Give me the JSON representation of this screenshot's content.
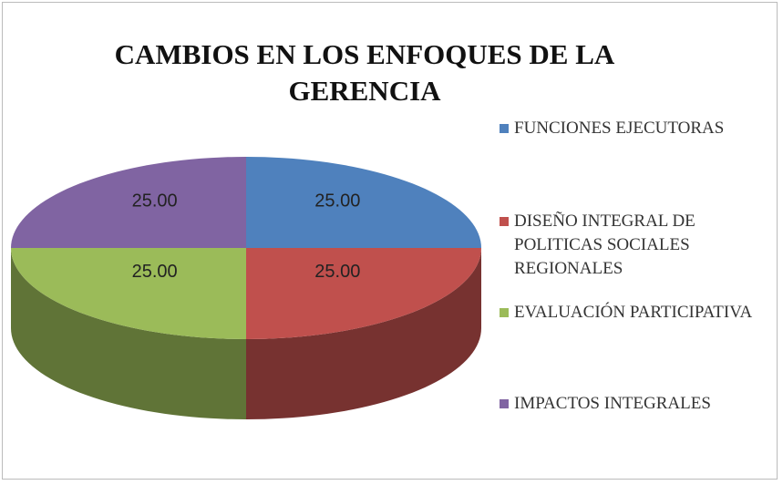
{
  "chart_data": {
    "type": "pie",
    "title": "CAMBIOS EN LOS ENFOQUES DE LA GERENCIA",
    "categories": [
      "FUNCIONES EJECUTORAS",
      "DISEÑO INTEGRAL DE POLITICAS SOCIALES REGIONALES",
      "EVALUACIÓN PARTICIPATIVA",
      "IMPACTOS INTEGRALES"
    ],
    "values": [
      25,
      25,
      25,
      25
    ],
    "value_labels": [
      "25.00",
      "25.00",
      "25.00",
      "25.00"
    ],
    "colors": [
      "#4f81bd",
      "#c0504d",
      "#9bbb59",
      "#8064a2"
    ],
    "legend": "right"
  }
}
